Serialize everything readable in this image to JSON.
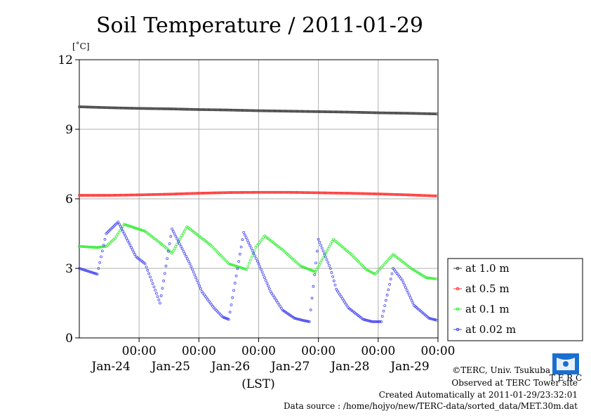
{
  "chart_data": {
    "type": "line",
    "title": "Soil Temperature / 2011-01-29",
    "ylabel": "[˚C]",
    "xlabel": "(LST)",
    "ylim": [
      0,
      12
    ],
    "y_ticks": [
      "0",
      "3",
      "6",
      "9",
      "12"
    ],
    "x_range_days": [
      23.0,
      29.0
    ],
    "x_ticks": [
      {
        "time": "00:00",
        "date": "Jan-24",
        "pos": 24
      },
      {
        "time": "00:00",
        "date": "Jan-25",
        "pos": 25
      },
      {
        "time": "00:00",
        "date": "Jan-26",
        "pos": 26
      },
      {
        "time": "00:00",
        "date": "Jan-27",
        "pos": 27
      },
      {
        "time": "00:00",
        "date": "Jan-28",
        "pos": 28
      },
      {
        "time": "00:00",
        "date": "Jan-29",
        "pos": 29
      }
    ],
    "grid": true,
    "legend_position": "right",
    "series": [
      {
        "name": "at 1.0 m",
        "color": "#404040",
        "x": [
          23.0,
          23.5,
          24.0,
          24.5,
          25.0,
          25.5,
          26.0,
          26.5,
          27.0,
          27.5,
          28.0,
          28.5,
          29.0
        ],
        "y": [
          9.97,
          9.93,
          9.9,
          9.88,
          9.85,
          9.83,
          9.8,
          9.78,
          9.76,
          9.74,
          9.71,
          9.69,
          9.66
        ]
      },
      {
        "name": "at 0.5 m",
        "color": "#ff3333",
        "x": [
          23.0,
          23.5,
          24.0,
          24.5,
          25.0,
          25.5,
          26.0,
          26.5,
          27.0,
          27.5,
          28.0,
          28.5,
          29.0
        ],
        "y": [
          6.15,
          6.15,
          6.17,
          6.2,
          6.24,
          6.27,
          6.28,
          6.28,
          6.26,
          6.24,
          6.21,
          6.17,
          6.12
        ]
      },
      {
        "name": "at 0.1 m",
        "color": "#33ee33",
        "x": [
          23.0,
          23.3,
          23.45,
          23.6,
          23.75,
          24.1,
          24.4,
          24.55,
          24.8,
          25.2,
          25.5,
          25.8,
          25.95,
          26.1,
          26.4,
          26.7,
          26.95,
          27.25,
          27.55,
          27.8,
          27.95,
          28.25,
          28.55,
          28.8,
          28.95,
          29.0
        ],
        "y": [
          3.95,
          3.9,
          3.95,
          4.3,
          4.9,
          4.6,
          4.0,
          3.65,
          4.8,
          4.0,
          3.2,
          2.95,
          3.9,
          4.4,
          3.8,
          3.1,
          2.85,
          4.25,
          3.6,
          2.95,
          2.75,
          3.6,
          3.0,
          2.6,
          2.55,
          2.55
        ]
      },
      {
        "name": "at 0.02 m",
        "color": "#4444ee",
        "x": [
          23.0,
          23.3,
          23.45,
          23.65,
          23.75,
          23.95,
          24.1,
          24.25,
          24.35,
          24.55,
          24.85,
          25.05,
          25.25,
          25.4,
          25.5,
          25.75,
          26.0,
          26.2,
          26.4,
          26.6,
          26.75,
          26.85,
          27.0,
          27.2,
          27.3,
          27.5,
          27.75,
          27.9,
          28.05,
          28.25,
          28.4,
          28.6,
          28.85,
          29.0
        ],
        "y": [
          3.0,
          2.75,
          4.5,
          5.0,
          4.5,
          3.5,
          3.2,
          2.2,
          1.5,
          4.7,
          3.2,
          2.0,
          1.3,
          0.9,
          0.8,
          4.55,
          3.2,
          2.0,
          1.2,
          0.85,
          0.75,
          0.7,
          4.25,
          3.0,
          2.1,
          1.3,
          0.8,
          0.7,
          0.7,
          3.0,
          2.5,
          1.4,
          0.85,
          0.75
        ]
      }
    ]
  },
  "footer": {
    "copyright": "©TERC, Univ. Tsukuba",
    "observed": "Observed at TERC Tower site",
    "created": "Created Automatically at 2011-01-29/23:32:01",
    "source": "Data source : /home/hojyo/new/TERC-data/sorted_data/MET.30m.dat"
  },
  "logo": {
    "text": "T E R C",
    "color": "#1a6fd1"
  }
}
